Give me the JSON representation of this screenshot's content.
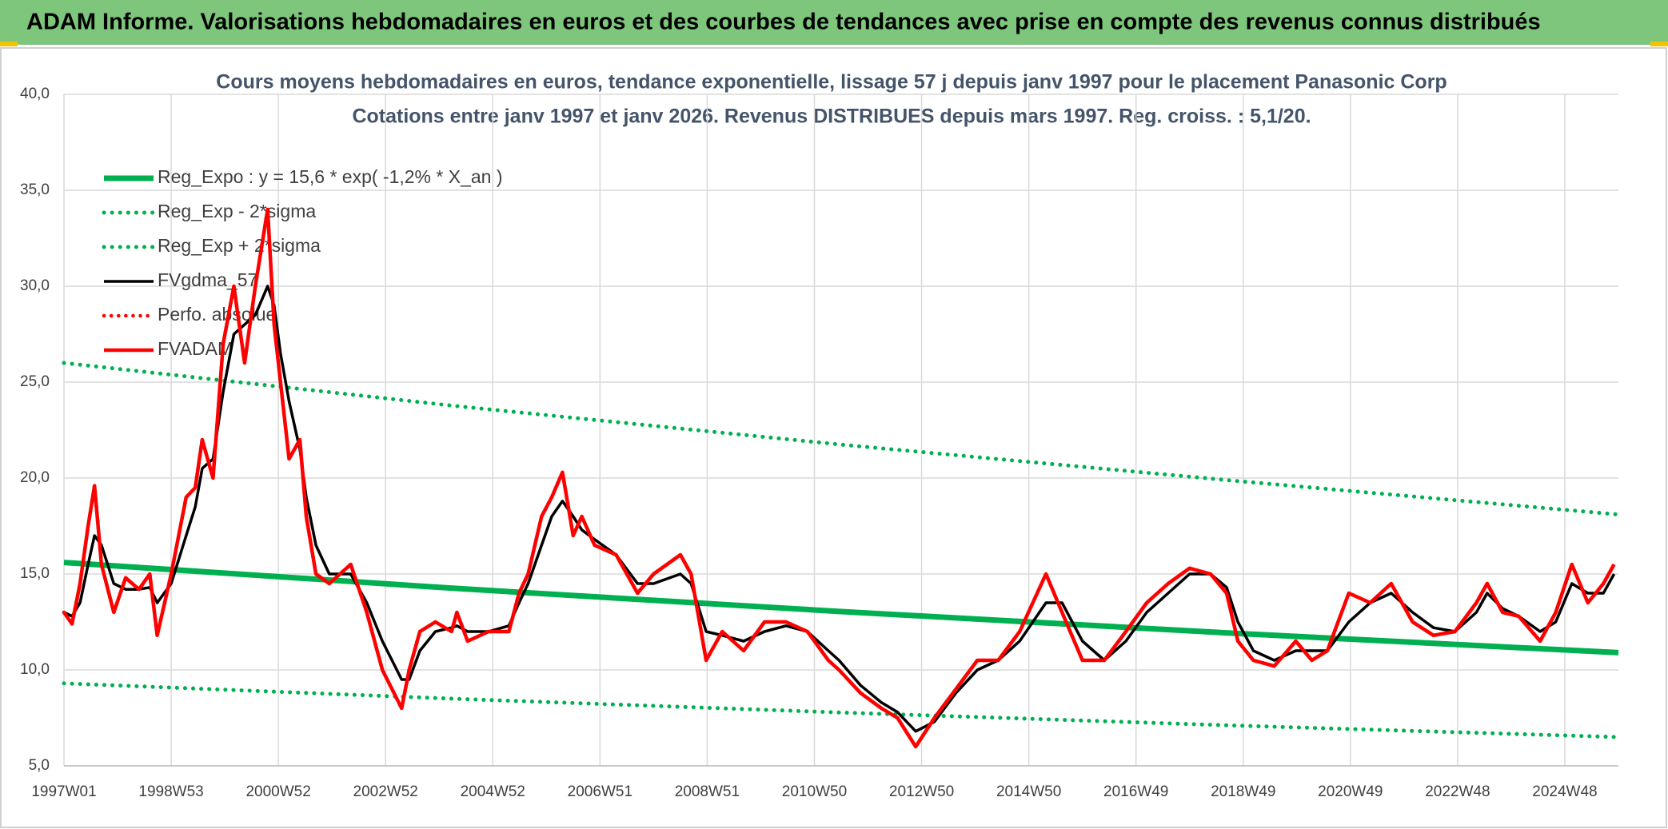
{
  "banner": "ADAM Informe. Valorisations hebdomadaires en euros et des courbes de tendances avec prise en compte des revenus connus distribués",
  "chart_data": {
    "type": "line",
    "title": "Cours moyens hebdomadaires en euros, tendance exponentielle, lissage 57 j depuis janv 1997 pour le placement Panasonic Corp",
    "subtitle": "Cotations entre janv 1997 et janv 2026. Revenus DISTRIBUES depuis mars 1997. Reg. croiss. : 5,1/20.",
    "xlim": [
      1997,
      2026
    ],
    "xticks": [
      {
        "value": 1997,
        "label": "1997W01"
      },
      {
        "value": 1999,
        "label": "1998W53"
      },
      {
        "value": 2001,
        "label": "2000W52"
      },
      {
        "value": 2003,
        "label": "2002W52"
      },
      {
        "value": 2005,
        "label": "2004W52"
      },
      {
        "value": 2007,
        "label": "2006W51"
      },
      {
        "value": 2009,
        "label": "2008W51"
      },
      {
        "value": 2011,
        "label": "2010W50"
      },
      {
        "value": 2013,
        "label": "2012W50"
      },
      {
        "value": 2015,
        "label": "2014W50"
      },
      {
        "value": 2017,
        "label": "2016W49"
      },
      {
        "value": 2019,
        "label": "2018W49"
      },
      {
        "value": 2021,
        "label": "2020W49"
      },
      {
        "value": 2023,
        "label": "2022W48"
      },
      {
        "value": 2025,
        "label": "2024W48"
      }
    ],
    "ylim": [
      5,
      40
    ],
    "yticks": [
      {
        "value": 5,
        "label": "5,0"
      },
      {
        "value": 10,
        "label": "10,0"
      },
      {
        "value": 15,
        "label": "15,0"
      },
      {
        "value": 20,
        "label": "20,0"
      },
      {
        "value": 25,
        "label": "25,0"
      },
      {
        "value": 30,
        "label": "30,0"
      },
      {
        "value": 35,
        "label": "35,0"
      },
      {
        "value": 40,
        "label": "40,0"
      }
    ],
    "grid": true,
    "legend": "upper-left",
    "x": [
      1997.0,
      1997.15,
      1997.3,
      1997.45,
      1997.57,
      1997.7,
      1997.93,
      1998.15,
      1998.4,
      1998.6,
      1998.74,
      1999.0,
      1999.28,
      1999.45,
      1999.58,
      1999.78,
      1999.97,
      2000.17,
      2000.37,
      2000.57,
      2000.8,
      2000.92,
      2001.04,
      2001.2,
      2001.4,
      2001.52,
      2001.7,
      2001.95,
      2002.35,
      2002.65,
      2002.94,
      2003.3,
      2003.44,
      2003.64,
      2003.93,
      2004.23,
      2004.33,
      2004.53,
      2004.92,
      2005.3,
      2005.49,
      2005.66,
      2005.91,
      2006.1,
      2006.3,
      2006.5,
      2006.66,
      2006.9,
      2007.3,
      2007.7,
      2008.0,
      2008.5,
      2008.7,
      2008.98,
      2009.28,
      2009.68,
      2010.07,
      2010.47,
      2010.87,
      2011.26,
      2011.46,
      2011.86,
      2012.25,
      2012.55,
      2012.89,
      2013.24,
      2013.64,
      2014.04,
      2014.43,
      2014.83,
      2015.32,
      2015.62,
      2016.0,
      2016.41,
      2016.81,
      2017.2,
      2017.6,
      2018.0,
      2018.39,
      2018.69,
      2018.9,
      2019.19,
      2019.58,
      2019.98,
      2020.28,
      2020.57,
      2020.97,
      2021.37,
      2021.76,
      2022.16,
      2022.55,
      2022.95,
      2023.35,
      2023.55,
      2023.84,
      2024.14,
      2024.54,
      2024.83,
      2025.13,
      2025.43,
      2025.72,
      2025.92
    ],
    "series": [
      {
        "name": "Reg_Expo : y = 15,6 * exp( -1,2% *  X_an )",
        "color": "#00b050",
        "dash": "solid",
        "x": [
          1997,
          2004.25,
          2011.5,
          2018.75,
          2026
        ],
        "values": [
          15.6,
          14.26,
          13.04,
          11.92,
          10.9
        ]
      },
      {
        "name": "Reg_Exp - 2*sigma",
        "color": "#00b050",
        "dash": "dotted",
        "x": [
          1997,
          2004.25,
          2011.5,
          2018.75,
          2026
        ],
        "values": [
          9.3,
          8.5,
          7.78,
          7.11,
          6.5
        ]
      },
      {
        "name": "Reg_Exp + 2*sigma",
        "color": "#00b050",
        "dash": "dotted",
        "x": [
          1997,
          2004.25,
          2011.5,
          2018.75,
          2026
        ],
        "values": [
          26.0,
          23.77,
          21.74,
          19.88,
          18.1
        ]
      },
      {
        "name": "FVgdma_57",
        "color": "#000000",
        "dash": "solid",
        "values": [
          13.0,
          12.8,
          13.5,
          15.5,
          17.0,
          16.5,
          14.5,
          14.2,
          14.2,
          14.3,
          13.5,
          14.5,
          17.0,
          18.5,
          20.5,
          21.0,
          24.5,
          27.5,
          28.0,
          28.5,
          30.0,
          29.0,
          26.5,
          24.0,
          21.5,
          19.0,
          16.5,
          15.0,
          15.0,
          13.5,
          11.5,
          9.5,
          9.5,
          11.0,
          12.0,
          12.2,
          12.3,
          12.0,
          12.0,
          12.3,
          13.5,
          14.5,
          16.5,
          18.0,
          18.8,
          18.0,
          17.3,
          16.8,
          16.0,
          14.5,
          14.5,
          15.0,
          14.5,
          12.0,
          11.8,
          11.5,
          12.0,
          12.3,
          12.0,
          11.0,
          10.5,
          9.2,
          8.3,
          7.8,
          6.8,
          7.3,
          8.8,
          10.0,
          10.5,
          11.5,
          13.5,
          13.5,
          11.5,
          10.5,
          11.5,
          13.0,
          14.0,
          15.0,
          15.0,
          14.3,
          12.5,
          11.0,
          10.5,
          11.0,
          11.0,
          11.0,
          12.5,
          13.5,
          14.0,
          13.0,
          12.2,
          12.0,
          13.0,
          14.0,
          13.2,
          12.8,
          12.0,
          12.5,
          14.5,
          14.0,
          14.0,
          15.0
        ]
      },
      {
        "name": "Perfo. absolue",
        "color": "#ff0000",
        "dash": "dotted",
        "values": [
          13.0,
          12.4,
          14.5,
          17.5,
          19.6,
          15.5,
          13.0,
          14.8,
          14.2,
          15.0,
          11.8,
          15.0,
          19.0,
          19.5,
          22.0,
          20.0,
          27.0,
          30.0,
          26.0,
          30.0,
          34.0,
          28.0,
          25.0,
          21.0,
          22.0,
          18.0,
          15.0,
          14.5,
          15.5,
          13.0,
          10.0,
          8.0,
          10.0,
          12.0,
          12.5,
          12.0,
          13.0,
          11.5,
          12.0,
          12.0,
          14.0,
          15.0,
          18.0,
          19.0,
          20.3,
          17.0,
          18.0,
          16.5,
          16.0,
          14.0,
          15.0,
          16.0,
          15.0,
          10.5,
          12.0,
          11.0,
          12.5,
          12.5,
          12.0,
          10.5,
          10.0,
          8.8,
          8.0,
          7.5,
          6.0,
          7.5,
          9.0,
          10.5,
          10.5,
          12.0,
          15.0,
          13.0,
          10.5,
          10.5,
          12.0,
          13.5,
          14.5,
          15.3,
          15.0,
          14.0,
          11.5,
          10.5,
          10.2,
          11.5,
          10.5,
          11.0,
          14.0,
          13.5,
          14.5,
          12.5,
          11.8,
          12.0,
          13.5,
          14.5,
          13.0,
          12.8,
          11.5,
          13.0,
          15.5,
          13.5,
          14.5,
          15.5
        ]
      },
      {
        "name": "FVADAM",
        "color": "#ff0000",
        "dash": "solid",
        "values": [
          13.0,
          12.4,
          14.5,
          17.5,
          19.6,
          15.5,
          13.0,
          14.8,
          14.2,
          15.0,
          11.8,
          15.0,
          19.0,
          19.5,
          22.0,
          20.0,
          27.0,
          30.0,
          26.0,
          30.0,
          34.0,
          28.0,
          25.0,
          21.0,
          22.0,
          18.0,
          15.0,
          14.5,
          15.5,
          13.0,
          10.0,
          8.0,
          10.0,
          12.0,
          12.5,
          12.0,
          13.0,
          11.5,
          12.0,
          12.0,
          14.0,
          15.0,
          18.0,
          19.0,
          20.3,
          17.0,
          18.0,
          16.5,
          16.0,
          14.0,
          15.0,
          16.0,
          15.0,
          10.5,
          12.0,
          11.0,
          12.5,
          12.5,
          12.0,
          10.5,
          10.0,
          8.8,
          8.0,
          7.5,
          6.0,
          7.5,
          9.0,
          10.5,
          10.5,
          12.0,
          15.0,
          13.0,
          10.5,
          10.5,
          12.0,
          13.5,
          14.5,
          15.3,
          15.0,
          14.0,
          11.5,
          10.5,
          10.2,
          11.5,
          10.5,
          11.0,
          14.0,
          13.5,
          14.5,
          12.5,
          11.8,
          12.0,
          13.5,
          14.5,
          13.0,
          12.8,
          11.5,
          13.0,
          15.5,
          13.5,
          14.5,
          15.5
        ]
      }
    ]
  }
}
